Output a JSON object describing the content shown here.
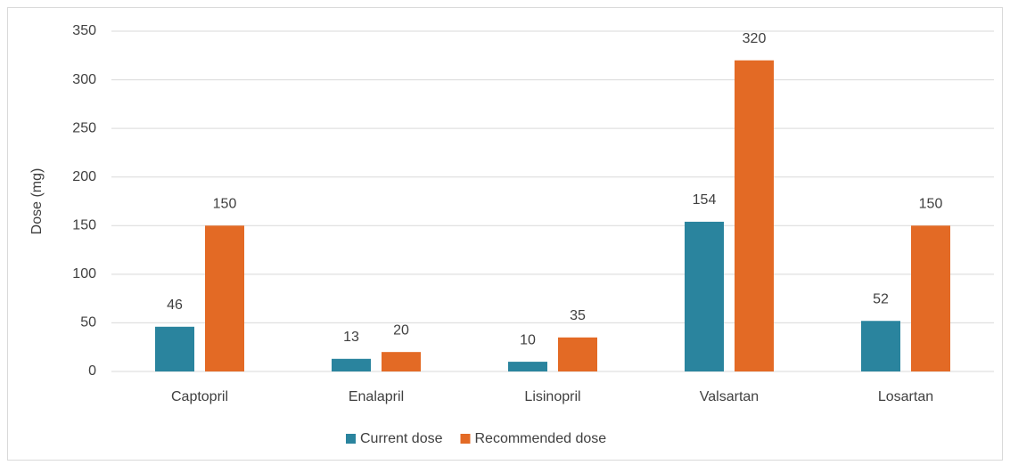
{
  "chart_data": {
    "type": "bar",
    "y_label": "Dose (mg)",
    "categories": [
      "Captopril",
      "Enalapril",
      "Lisinopril",
      "Valsartan",
      "Losartan"
    ],
    "series": [
      {
        "name": "Current dose",
        "color": "#2a849e",
        "values": [
          46,
          13,
          10,
          154,
          52
        ]
      },
      {
        "name": "Recommended dose",
        "color": "#e36a25",
        "values": [
          150,
          20,
          35,
          320,
          150
        ]
      }
    ],
    "ylim": [
      0,
      350
    ],
    "yticks": [
      0,
      50,
      100,
      150,
      200,
      250,
      300,
      350
    ],
    "grid": true,
    "legend": "bottom"
  }
}
